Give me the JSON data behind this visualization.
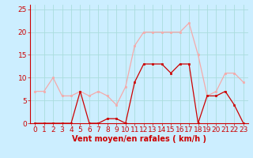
{
  "x": [
    0,
    1,
    2,
    3,
    4,
    5,
    6,
    7,
    8,
    9,
    10,
    11,
    12,
    13,
    14,
    15,
    16,
    17,
    18,
    19,
    20,
    21,
    22,
    23
  ],
  "wind_avg": [
    0,
    0,
    0,
    0,
    0,
    7,
    0,
    0,
    1,
    1,
    0,
    9,
    13,
    13,
    13,
    11,
    13,
    13,
    0,
    6,
    6,
    7,
    4,
    0
  ],
  "wind_gust": [
    7,
    7,
    10,
    6,
    6,
    7,
    6,
    7,
    6,
    4,
    8,
    17,
    20,
    20,
    20,
    20,
    20,
    22,
    15,
    6,
    7,
    11,
    11,
    9
  ],
  "avg_color": "#cc0000",
  "gust_color": "#f4aaaa",
  "bg_color": "#cceeff",
  "grid_color": "#aadddd",
  "xlabel": "Vent moyen/en rafales ( km/h )",
  "ylim": [
    0,
    26
  ],
  "xlim": [
    -0.5,
    23.5
  ],
  "yticks": [
    0,
    5,
    10,
    15,
    20,
    25
  ],
  "xticks": [
    0,
    1,
    2,
    3,
    4,
    5,
    6,
    7,
    8,
    9,
    10,
    11,
    12,
    13,
    14,
    15,
    16,
    17,
    18,
    19,
    20,
    21,
    22,
    23
  ],
  "xlabel_fontsize": 7,
  "tick_fontsize": 6.5,
  "tick_color": "#cc0000",
  "spine_color": "#cc0000"
}
